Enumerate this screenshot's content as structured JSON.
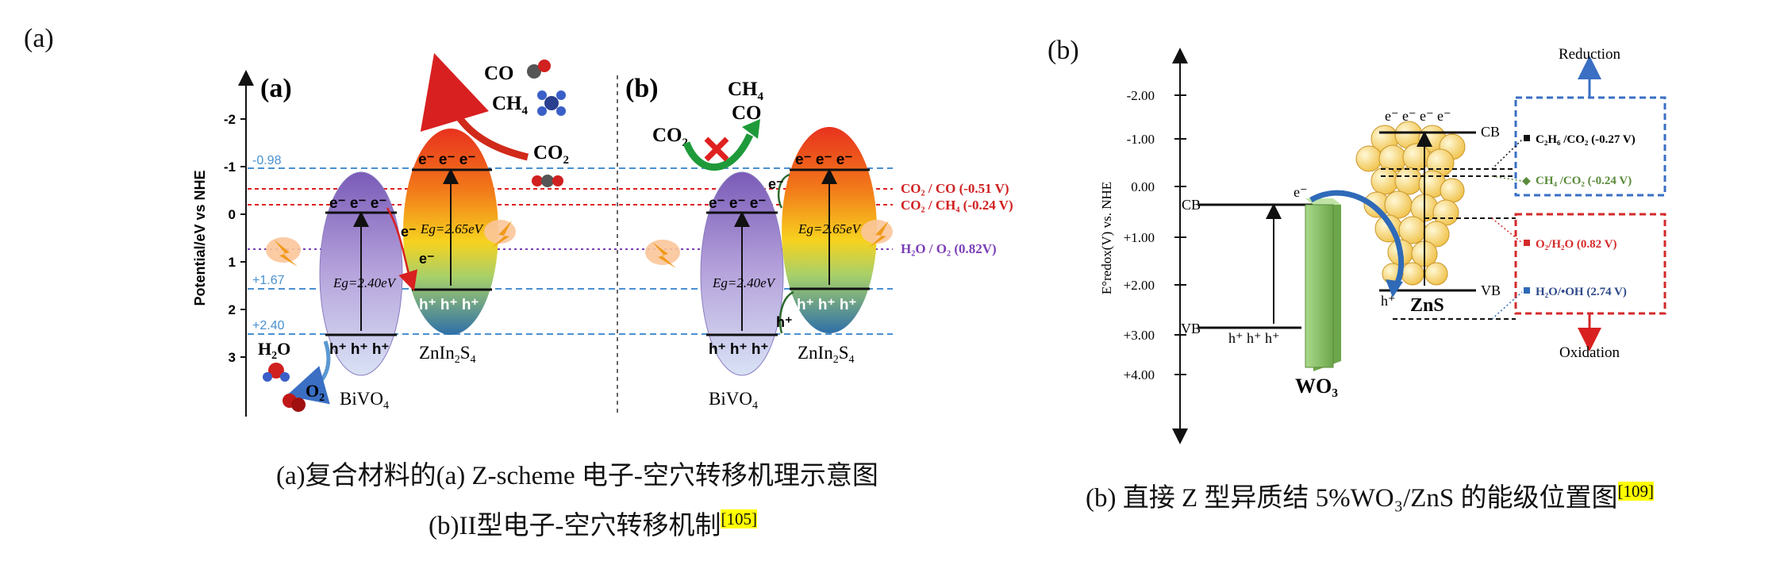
{
  "figure_a": {
    "panel_label": "(a)",
    "left": {
      "panel_label": "(a)",
      "y_axis_label": "Potential/eV vs NHE",
      "y_ticks": [
        "-2",
        "-1",
        "0",
        "1",
        "2",
        "3"
      ],
      "level_labels": [
        "-0.98",
        "+1.67",
        "+2.40"
      ],
      "band_gap_bivo4": "Eg=2.40eV",
      "band_gap_znin2s4": "Eg=2.65eV",
      "material_1": "BiVO",
      "material_1_sub": "4",
      "material_2_a": "ZnIn",
      "material_2_sub1": "2",
      "material_2_b": "S",
      "material_2_sub2": "4",
      "electrons": "e⁻ e⁻ e⁻",
      "holes": "h⁺ h⁺ h⁺",
      "e_single": "e⁻",
      "mol_co": "CO",
      "mol_ch4": "CH",
      "mol_ch4_sub": "4",
      "mol_co2": "CO",
      "mol_co2_sub": "2",
      "mol_h2o_a": "H",
      "mol_h2o_sub": "2",
      "mol_h2o_b": "O",
      "mol_o2": "O",
      "mol_o2_sub": "2"
    },
    "right": {
      "panel_label": "(b)",
      "products_1": "CH",
      "products_1_sub": "4",
      "products_2": "CO",
      "reactant": "CO",
      "reactant_sub": "2",
      "band_gap_bivo4": "Eg=2.40eV",
      "band_gap_znin2s4": "Eg=2.65eV",
      "material_1": "BiVO",
      "material_1_sub": "4",
      "material_2_a": "ZnIn",
      "material_2_sub1": "2",
      "material_2_b": "S",
      "material_2_sub2": "4",
      "e_single": "e⁻",
      "h_single": "h⁺"
    },
    "redox_labels": {
      "co2_co": "CO₂ / CO (-0.51 V)",
      "co2_ch4": "CO₂ / CH₄ (-0.24 V)",
      "h2o_o2": "H₂O / O₂ (0.82V)"
    },
    "caption_line1": "(a)复合材料的(a) Z-scheme 电子-空穴转移机理示意图",
    "caption_line2": "(b)II型电子-空穴转移机制",
    "caption_ref": "[105]"
  },
  "figure_b": {
    "panel_label": "(b)",
    "y_axis_label": "E°redox(V) vs. NHE",
    "y_ticks": [
      "-2.00",
      "-1.00",
      "0.00",
      "+1.00",
      "+2.00",
      "+3.00",
      "+4.00"
    ],
    "wo3_label": "WO₃",
    "zns_label": "ZnS",
    "cb": "CB",
    "vb": "VB",
    "e_minus": "e⁻",
    "electrons": "e⁻  e⁻  e⁻  e⁻",
    "holes": "h⁺  h⁺  h⁺",
    "h_plus": "h⁺",
    "reduction": "Reduction",
    "oxidation": "Oxidation",
    "c2h6": "C₂H₆ /CO₂ (-0.27 V)",
    "ch4": "CH₄ /CO₂ (-0.24 V)",
    "o2h2o": "O₂/H₂O (0.82 V)",
    "h2ooh": "H₂O/•OH (2.74 V)",
    "caption": "(b)  直接 Z 型异质结 5%WO₃/ZnS 的能级位置图",
    "caption_ref": "[109]"
  },
  "colors": {
    "blue_dash": "#4a90d0",
    "red_dash": "#e02020",
    "purple_dot": "#7b3fb8",
    "wo3_green": "#8cc063",
    "zns_yellow": "#f5cf6a",
    "reduction_box": "#3a6fc4",
    "oxidation_box": "#d42a2a",
    "highlight": "#ffff00"
  }
}
